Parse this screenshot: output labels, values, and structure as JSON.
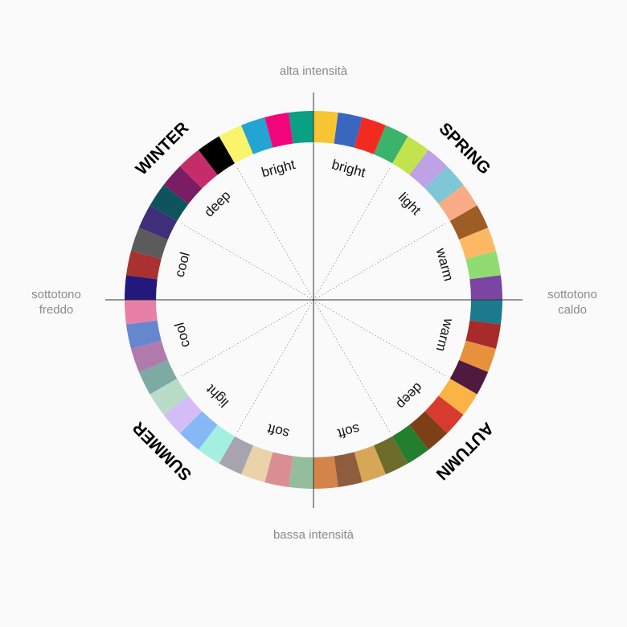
{
  "axes": {
    "top": "alta intensità",
    "bottom": "bassa intensità",
    "left": [
      "sottotono",
      "freddo"
    ],
    "right": [
      "sottotono",
      "caldo"
    ]
  },
  "seasons": {
    "winter": "WINTER",
    "spring": "SPRING",
    "summer": "SUMMER",
    "autumn": "AUTUMN"
  },
  "sectors": [
    {
      "label": "bright",
      "season": "spring"
    },
    {
      "label": "light",
      "season": "spring"
    },
    {
      "label": "warm",
      "season": "spring"
    },
    {
      "label": "warm",
      "season": "autumn"
    },
    {
      "label": "deep",
      "season": "autumn"
    },
    {
      "label": "soft",
      "season": "autumn"
    },
    {
      "label": "soft",
      "season": "summer"
    },
    {
      "label": "light",
      "season": "summer"
    },
    {
      "label": "cool",
      "season": "summer"
    },
    {
      "label": "cool",
      "season": "winter"
    },
    {
      "label": "deep",
      "season": "winter"
    },
    {
      "label": "bright",
      "season": "winter"
    }
  ],
  "swatches": [
    "#f7c433",
    "#3a66c0",
    "#f22a1f",
    "#3bb36c",
    "#c2e34e",
    "#bda2e6",
    "#7fc6d6",
    "#f9ab85",
    "#9e5d24",
    "#fcb865",
    "#91dc72",
    "#7b45a4",
    "#1d7a8c",
    "#a82a2a",
    "#e8913c",
    "#4e1a3f",
    "#fbb345",
    "#d83a2d",
    "#7c3f18",
    "#237e2e",
    "#6e6c2b",
    "#d6a757",
    "#8e5d3e",
    "#d4834b",
    "#94bd9e",
    "#db8e92",
    "#ead3aa",
    "#a7a4b0",
    "#a3f0e1",
    "#86b8f6",
    "#d4bdf7",
    "#b8dcc8",
    "#7eaaa4",
    "#b17aad",
    "#6686cd",
    "#e77fa7",
    "#23187c",
    "#a9312f",
    "#5b5b5b",
    "#3f2e78",
    "#0f545c",
    "#7a1d64",
    "#c72c6a",
    "#000000",
    "#f9f46b",
    "#23a4d3",
    "#f2057a",
    "#0aa083"
  ]
}
